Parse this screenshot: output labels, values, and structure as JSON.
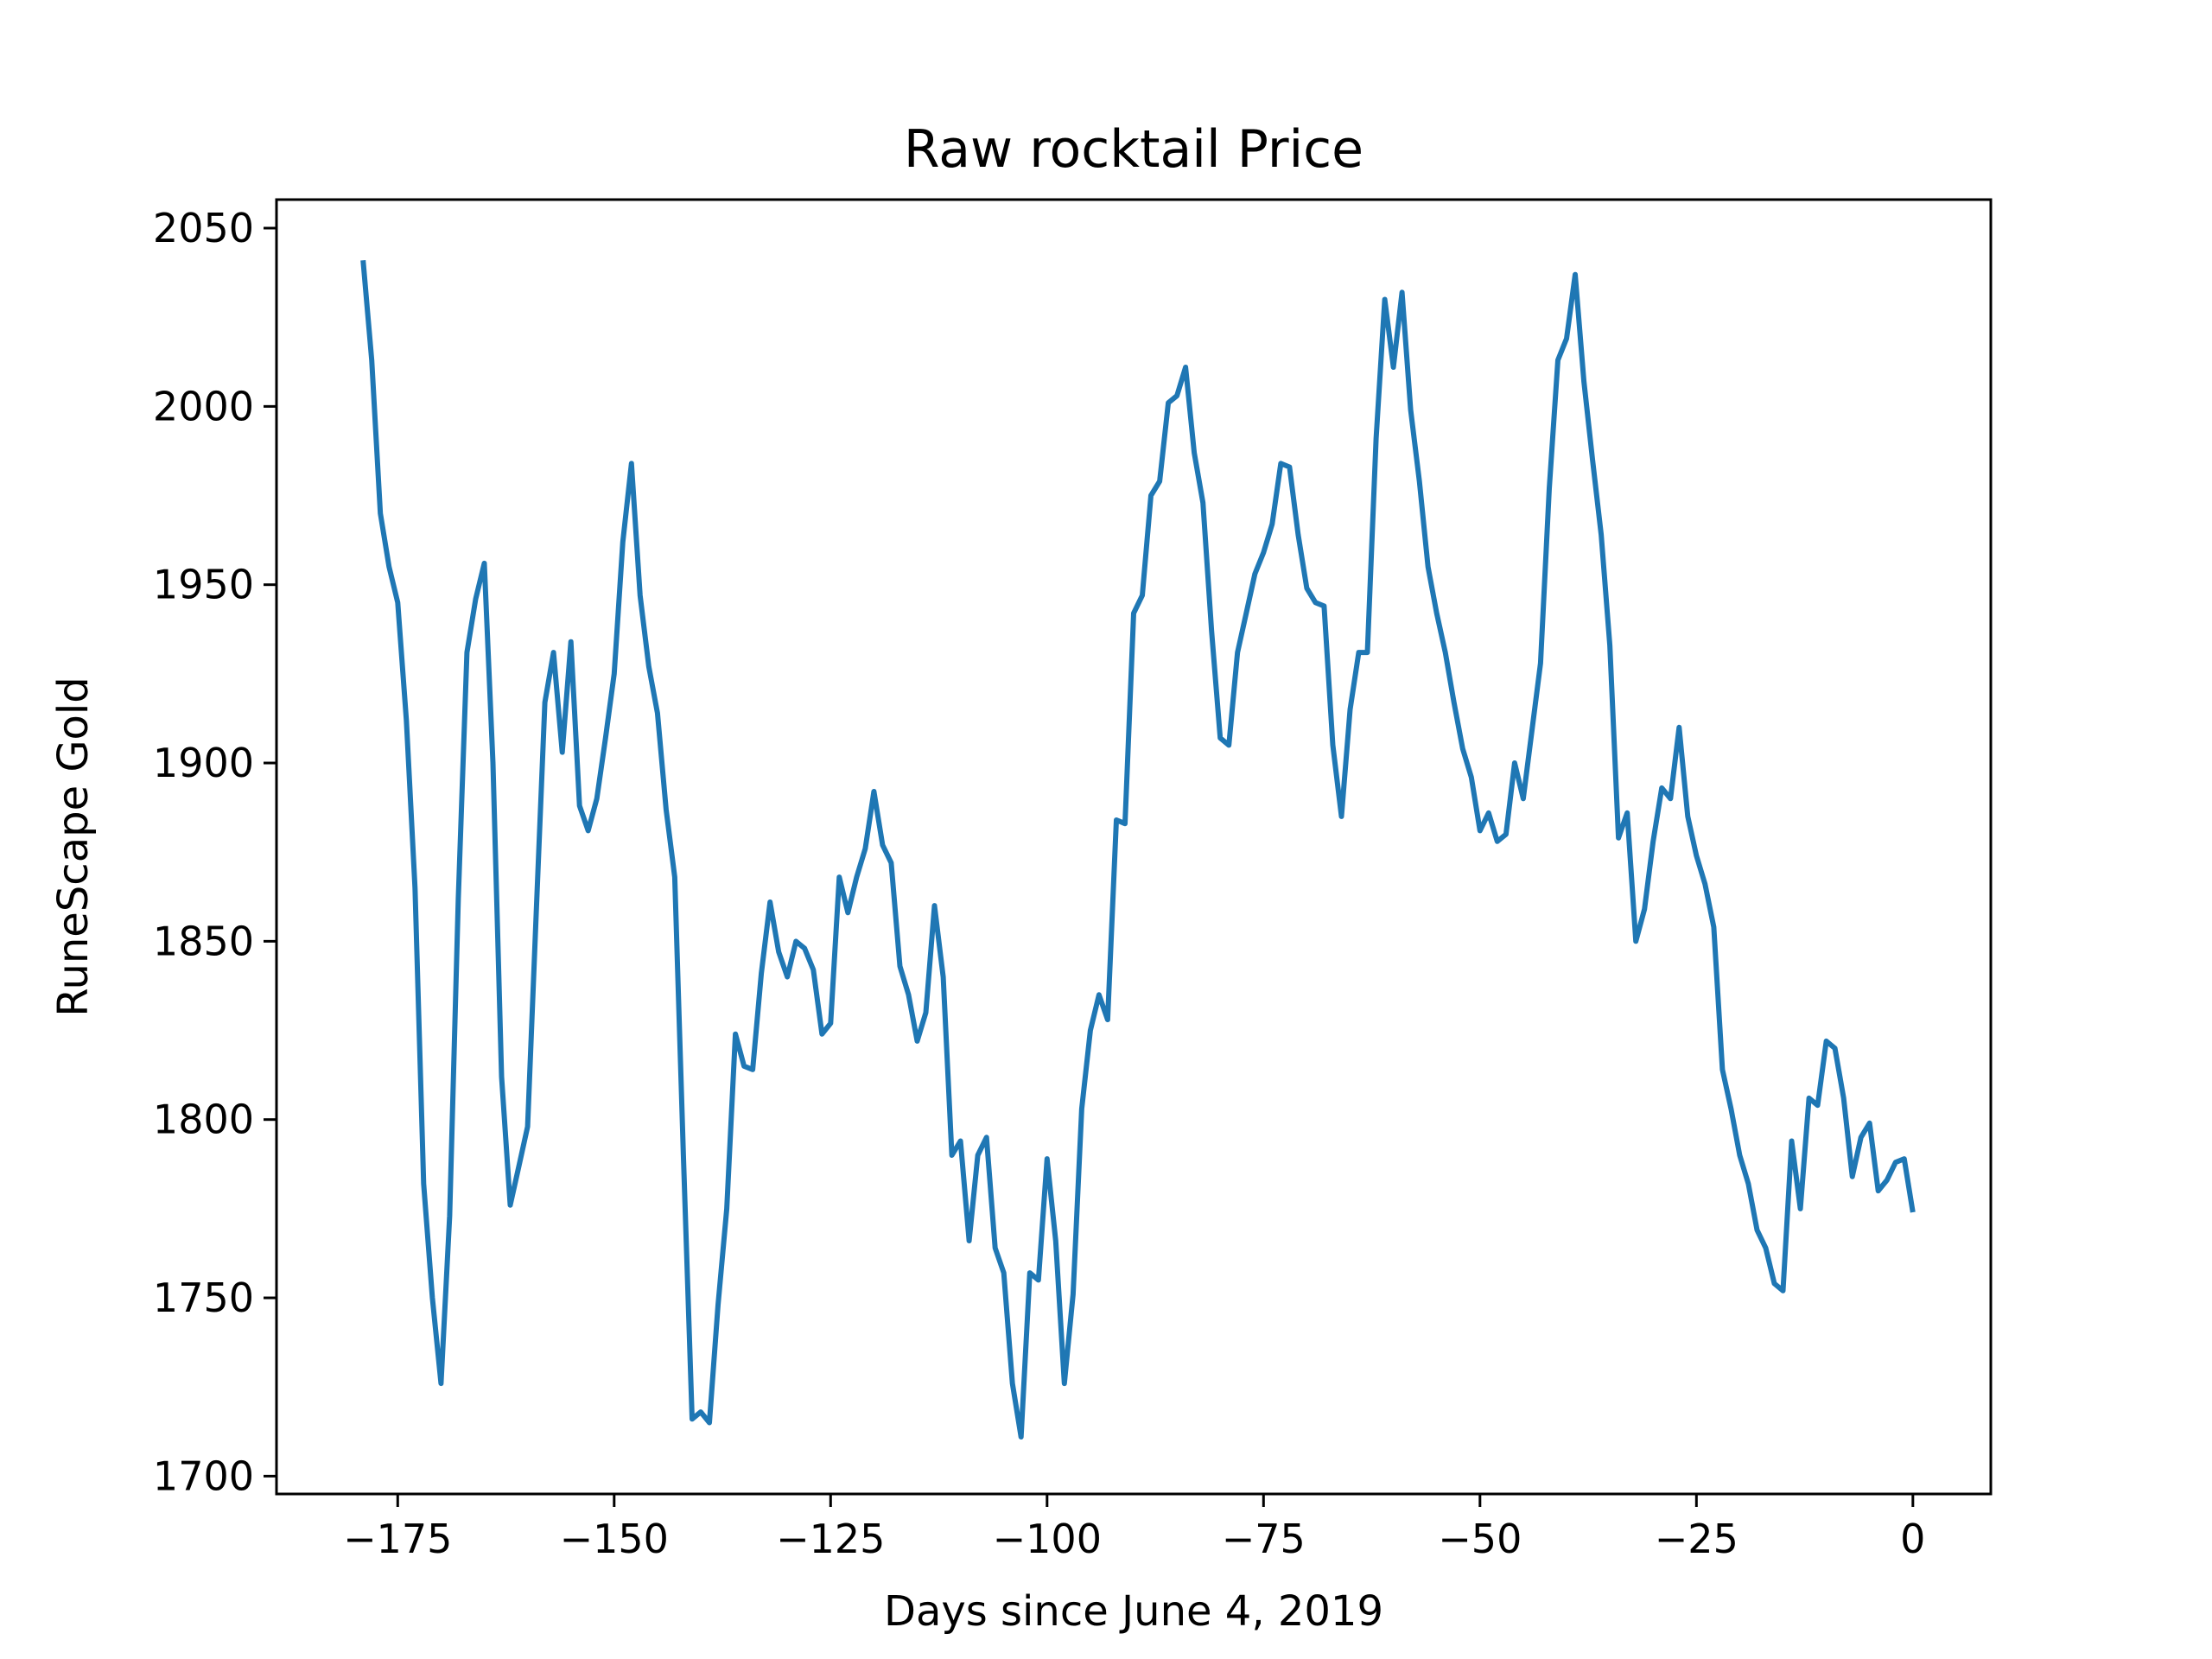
{
  "chart_data": {
    "type": "line",
    "title": "Raw rocktail Price",
    "xlabel": "Days since June 4, 2019",
    "ylabel": "RuneScape Gold",
    "xlim": [
      -189,
      9
    ],
    "ylim": [
      1695,
      2058
    ],
    "x_ticks": [
      -175,
      -150,
      -125,
      -100,
      -75,
      -50,
      -25,
      0
    ],
    "x_tick_labels": [
      "−175",
      "−150",
      "−125",
      "−100",
      "−75",
      "−50",
      "−25",
      "0"
    ],
    "y_ticks": [
      1700,
      1750,
      1800,
      1850,
      1900,
      1950,
      2000,
      2050
    ],
    "y_tick_labels": [
      "1700",
      "1750",
      "1800",
      "1850",
      "1900",
      "1950",
      "2000",
      "2050"
    ],
    "grid": false,
    "line_color": "#1f77b4",
    "series": [
      {
        "x": [
          -179,
          -178,
          -177,
          -176,
          -175,
          -174,
          -173,
          -172,
          -171,
          -170,
          -169,
          -168,
          -167,
          -166,
          -165,
          -164,
          -163,
          -162,
          -161,
          -160,
          -159,
          -158,
          -157,
          -156,
          -155,
          -154,
          -153,
          -152,
          -151,
          -150,
          -149,
          -148,
          -147,
          -146,
          -145,
          -144,
          -143,
          -142,
          -141,
          -140,
          -139,
          -138,
          -137,
          -136,
          -135,
          -134,
          -133,
          -132,
          -131,
          -130,
          -129,
          -128,
          -127,
          -126,
          -125,
          -124,
          -123,
          -122,
          -121,
          -120,
          -119,
          -118,
          -117,
          -116,
          -115,
          -114,
          -113,
          -112,
          -111,
          -110,
          -109,
          -108,
          -107,
          -106,
          -105,
          -104,
          -103,
          -102,
          -101,
          -100,
          -99,
          -98,
          -97,
          -96,
          -95,
          -94,
          -93,
          -92,
          -91,
          -90,
          -89,
          -88,
          -87,
          -86,
          -85,
          -84,
          -83,
          -82,
          -81,
          -80,
          -79,
          -78,
          -77,
          -76,
          -75,
          -74,
          -73,
          -72,
          -71,
          -70,
          -69,
          -68,
          -67,
          -66,
          -65,
          -64,
          -63,
          -62,
          -61,
          -60,
          -59,
          -58,
          -57,
          -56,
          -55,
          -54,
          -53,
          -52,
          -51,
          -50,
          -49,
          -48,
          -47,
          -46,
          -45,
          -44,
          -43,
          -42,
          -41,
          -40,
          -39,
          -38,
          -37,
          -36,
          -35,
          -34,
          -33,
          -32,
          -31,
          -30,
          -29,
          -28,
          -27,
          -26,
          -25,
          -24,
          -23,
          -22,
          -21,
          -20,
          -19,
          -18,
          -17,
          -16,
          -15,
          -14,
          -13,
          -12,
          -11,
          -10,
          -9,
          -8,
          -7,
          -6,
          -5,
          -4,
          -3,
          -2,
          -1,
          0
        ],
        "y": [
          2041,
          2013,
          1970,
          1955,
          1945,
          1912,
          1865,
          1782,
          1750,
          1726,
          1773,
          1862,
          1931,
          1946,
          1956,
          1900,
          1812,
          1776,
          1787,
          1798,
          1858,
          1917,
          1931,
          1903,
          1934,
          1888,
          1881,
          1890,
          1907,
          1925,
          1962,
          1984,
          1947,
          1927,
          1914,
          1887,
          1868,
          1790,
          1716,
          1718,
          1715,
          1748,
          1775,
          1824,
          1815,
          1814,
          1841,
          1861,
          1847,
          1840,
          1850,
          1848,
          1842,
          1824,
          1827,
          1868,
          1858,
          1868,
          1876,
          1892,
          1877,
          1872,
          1843,
          1835,
          1822,
          1830,
          1860,
          1840,
          1790,
          1794,
          1766,
          1790,
          1795,
          1764,
          1757,
          1726,
          1711,
          1757,
          1755,
          1789,
          1766,
          1726,
          1751,
          1803,
          1825,
          1835,
          1828,
          1884,
          1883,
          1942,
          1947,
          1975,
          1979,
          2001,
          2003,
          2011,
          1987,
          1973,
          1937,
          1907,
          1905,
          1931,
          1942,
          1953,
          1959,
          1967,
          1984,
          1983,
          1964,
          1949,
          1945,
          1944,
          1905,
          1885,
          1915,
          1931,
          1931,
          1991,
          2030,
          2011,
          2032,
          1999,
          1979,
          1955,
          1942,
          1931,
          1917,
          1904,
          1896,
          1881,
          1886,
          1878,
          1880,
          1900,
          1890,
          1909,
          1928,
          1977,
          2013,
          2019,
          2037,
          2007,
          1985,
          1964,
          1933,
          1879,
          1886,
          1850,
          1859,
          1878,
          1893,
          1890,
          1910,
          1885,
          1874,
          1866,
          1854,
          1814,
          1803,
          1790,
          1782,
          1769,
          1764,
          1754,
          1752,
          1794,
          1775,
          1806,
          1804,
          1822,
          1820,
          1806,
          1784,
          1795,
          1799,
          1780,
          1783,
          1788,
          1789,
          1774
        ]
      }
    ]
  }
}
